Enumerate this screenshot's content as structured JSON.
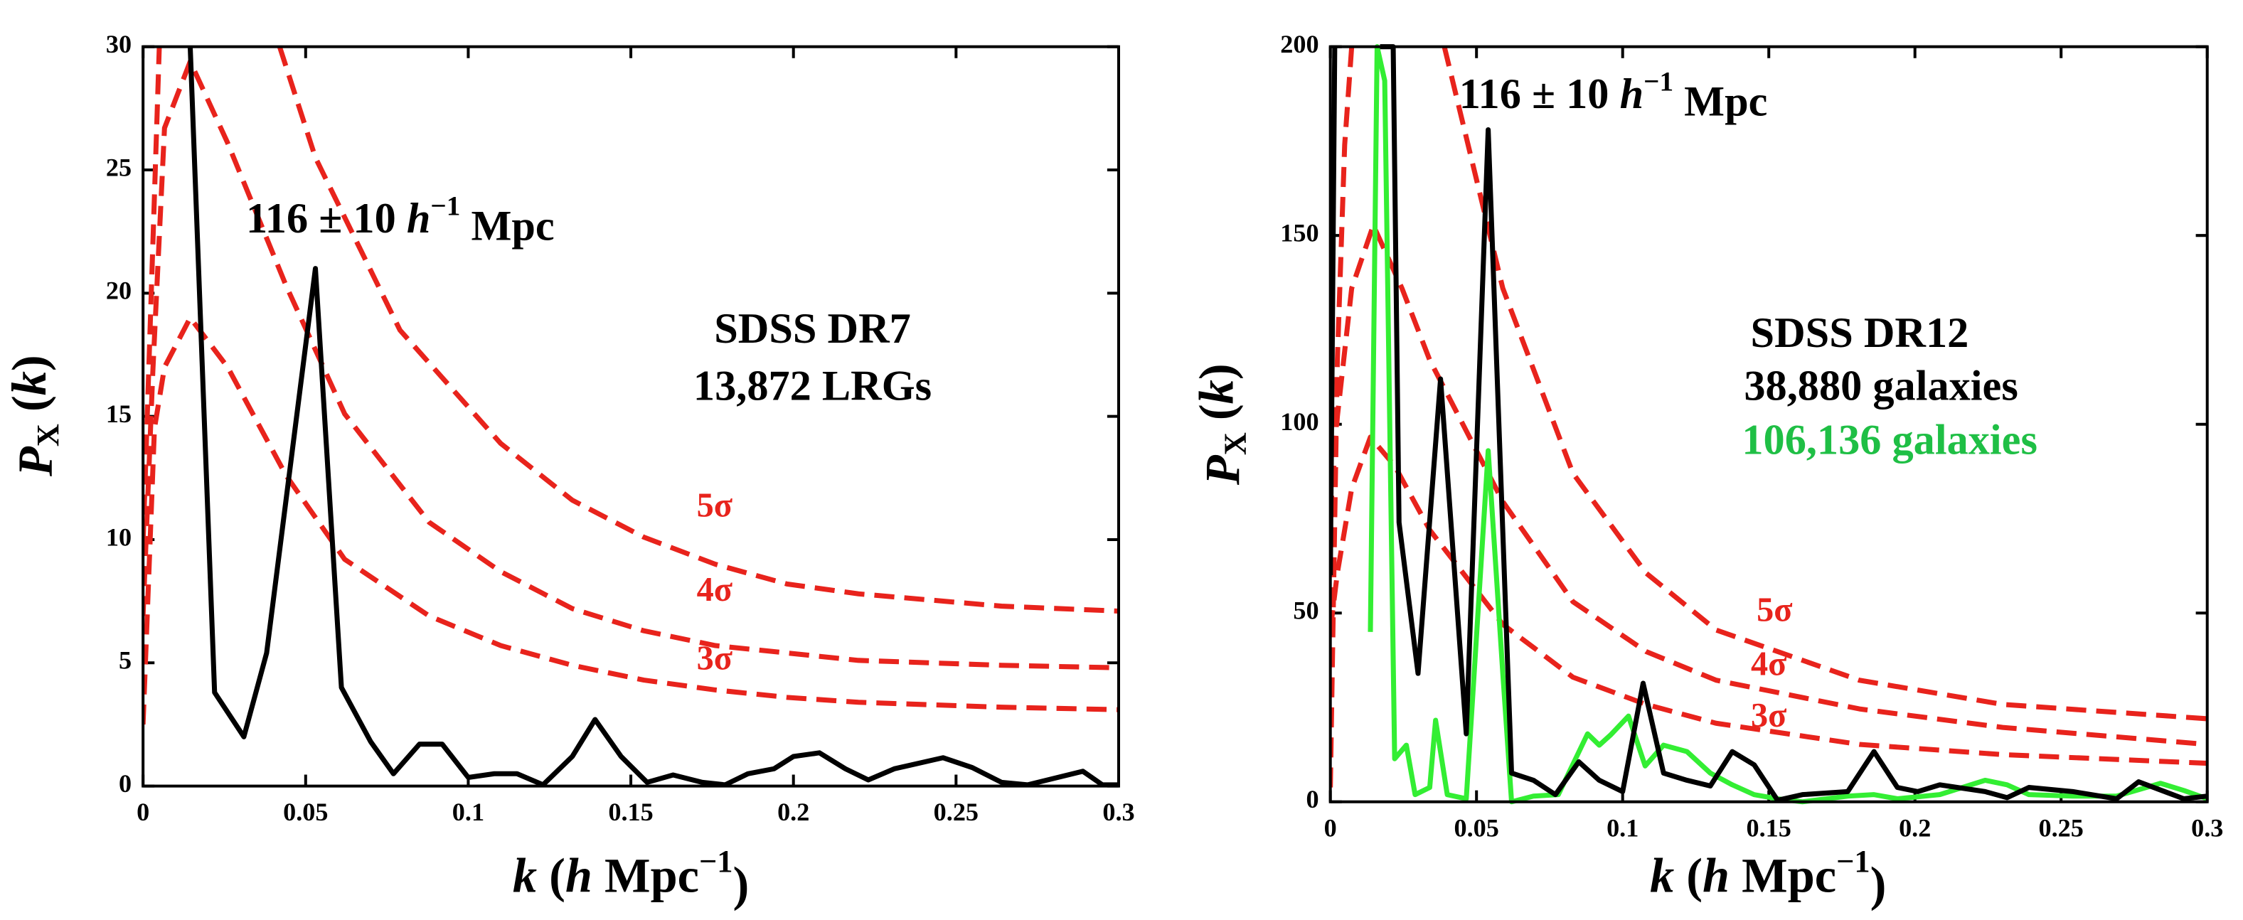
{
  "chart_data": [
    {
      "type": "line",
      "xlim": [
        0,
        0.3
      ],
      "ylim": [
        0,
        30
      ],
      "xticks": [
        0,
        0.05,
        0.1,
        0.15,
        0.2,
        0.25,
        0.3
      ],
      "yticks": [
        0,
        5,
        10,
        15,
        20,
        25,
        30
      ],
      "xlabel": [
        "k",
        " (",
        "h",
        " Mpc",
        "−1",
        ")"
      ],
      "ylabel": [
        "P",
        "X",
        " (",
        "k",
        ")"
      ],
      "annotations": [
        {
          "text": [
            "116 ± 10 ",
            "h",
            "−1",
            " Mpc"
          ],
          "color": "#000000"
        },
        {
          "text": "SDSS DR7",
          "color": "#000000"
        },
        {
          "text": "13,872 LRGs",
          "color": "#000000"
        }
      ],
      "series": [
        {
          "name": "5σ",
          "color": "#e8231c",
          "dashed": true,
          "x": [
            0,
            0.0026,
            0.005,
            0.02,
            0.042,
            0.053,
            0.079,
            0.11,
            0.132,
            0.154,
            0.176,
            0.198,
            0.22,
            0.264,
            0.3
          ],
          "values": [
            9.8,
            20.3,
            30,
            null,
            30,
            25.5,
            18.5,
            13.9,
            11.6,
            10.1,
            9.0,
            8.2,
            7.8,
            7.3,
            7.1
          ]
        },
        {
          "name": "4σ",
          "color": "#e8231c",
          "dashed": true,
          "x": [
            0,
            0.003,
            0.0066,
            0.0145,
            0.026,
            0.044,
            0.062,
            0.088,
            0.11,
            0.132,
            0.154,
            0.176,
            0.198,
            0.22,
            0.264,
            0.3
          ],
          "values": [
            6.9,
            16.8,
            26.7,
            29.4,
            26.1,
            20.3,
            15.1,
            10.7,
            8.7,
            7.2,
            6.3,
            5.7,
            5.4,
            5.1,
            4.9,
            4.8
          ]
        },
        {
          "name": "3σ",
          "color": "#e8231c",
          "dashed": true,
          "x": [
            0,
            0.0035,
            0.0066,
            0.0145,
            0.026,
            0.044,
            0.062,
            0.088,
            0.11,
            0.132,
            0.154,
            0.176,
            0.198,
            0.22,
            0.242,
            0.264,
            0.3
          ],
          "values": [
            2.5,
            14.5,
            17,
            19,
            17,
            12.6,
            9.2,
            6.9,
            5.7,
            4.9,
            4.3,
            3.9,
            3.6,
            3.4,
            3.3,
            3.2,
            3.1
          ]
        },
        {
          "color": "#000000",
          "dashed": false,
          "x": [
            0.0145,
            0.022,
            0.031,
            0.038,
            0.053,
            0.061,
            0.07,
            0.077,
            0.085,
            0.092,
            0.1,
            0.108,
            0.115,
            0.123,
            0.132,
            0.139,
            0.147,
            0.155,
            0.163,
            0.172,
            0.179,
            0.186,
            0.194,
            0.2,
            0.208,
            0.216,
            0.223,
            0.231,
            0.246,
            0.255,
            0.264,
            0.272,
            0.289,
            0.295,
            0.3
          ],
          "values": [
            30,
            3.8,
            2.0,
            5.4,
            21,
            4.0,
            1.8,
            0.5,
            1.7,
            1.7,
            0.35,
            0.5,
            0.5,
            0.05,
            1.2,
            2.7,
            1.2,
            0.15,
            0.45,
            0.15,
            0.05,
            0.5,
            0.7,
            1.2,
            1.35,
            0.7,
            0.25,
            0.7,
            1.15,
            0.75,
            0.15,
            0.05,
            0.6,
            0.05,
            0.05
          ]
        }
      ]
    },
    {
      "type": "line",
      "xlim": [
        0,
        0.3
      ],
      "ylim": [
        0,
        200
      ],
      "xticks": [
        0,
        0.05,
        0.1,
        0.15,
        0.2,
        0.25,
        0.3
      ],
      "yticks": [
        0,
        50,
        100,
        150,
        200
      ],
      "xlabel": [
        "k",
        " (",
        "h",
        " Mpc",
        "−1",
        ")"
      ],
      "ylabel": [
        "P",
        "X",
        " (",
        "k",
        ")"
      ],
      "annotations": [
        {
          "text": [
            "116 ± 10 ",
            "h",
            "−1",
            " Mpc"
          ],
          "color": "#000000"
        },
        {
          "text": "SDSS DR12",
          "color": "#000000"
        },
        {
          "text": "38,880 galaxies",
          "color": "#000000"
        },
        {
          "text": "106,136 galaxies",
          "color": "#1fbf45"
        }
      ],
      "series": [
        {
          "name": "5σ",
          "color": "#e8231c",
          "dashed": true,
          "x": [
            0,
            0.0024,
            0.0049,
            0.0073,
            0.02,
            0.039,
            0.059,
            0.083,
            0.108,
            0.132,
            0.181,
            0.23,
            0.3
          ],
          "values": [
            3.8,
            117,
            174,
            200,
            null,
            200,
            136,
            87,
            60.6,
            45.5,
            32.2,
            25.8,
            22
          ]
        },
        {
          "name": "4σ",
          "color": "#e8231c",
          "dashed": true,
          "x": [
            0,
            0.0024,
            0.0073,
            0.0147,
            0.0245,
            0.034,
            0.059,
            0.083,
            0.108,
            0.132,
            0.181,
            0.23,
            0.3
          ],
          "values": [
            75.8,
            102,
            136,
            152.7,
            136,
            117,
            79.5,
            53,
            39.8,
            32.2,
            24.6,
            19.7,
            15.2
          ]
        },
        {
          "name": "3σ",
          "color": "#e8231c",
          "dashed": true,
          "x": [
            0,
            0.0024,
            0.0073,
            0.0137,
            0.022,
            0.034,
            0.059,
            0.083,
            0.108,
            0.132,
            0.181,
            0.23,
            0.3
          ],
          "values": [
            45.5,
            60.6,
            83,
            96.6,
            89,
            72,
            47,
            33,
            25.8,
            20.8,
            15.2,
            12.5,
            10.2
          ]
        },
        {
          "color": "#33ee33",
          "dashed": false,
          "x": [
            0.0137,
            0.016,
            0.0186,
            0.022,
            0.026,
            0.029,
            0.034,
            0.036,
            0.04,
            0.0465,
            0.054,
            0.059,
            0.062,
            0.0695,
            0.078,
            0.088,
            0.092,
            0.096,
            0.102,
            0.1077,
            0.114,
            0.122,
            0.13,
            0.1375,
            0.145,
            0.153,
            0.1615,
            0.177,
            0.186,
            0.194,
            0.2085,
            0.224,
            0.2315,
            0.239,
            0.254,
            0.269,
            0.284,
            0.292,
            0.3
          ],
          "values": [
            45,
            200,
            191,
            11.4,
            15,
            1.9,
            3.8,
            21.6,
            1.9,
            0.8,
            93,
            34,
            0,
            1.5,
            1.9,
            18,
            15,
            17.8,
            22.7,
            9.5,
            15,
            13.3,
            7.6,
            4.5,
            1.9,
            0.8,
            0,
            1.5,
            1.9,
            0.8,
            1.9,
            5.7,
            4.5,
            1.9,
            1.5,
            1.5,
            4.9,
            3,
            0.8
          ]
        },
        {
          "color": "#000000",
          "dashed": false,
          "x": [
            0,
            0.0015,
            0.008,
            0.017,
            0.0215,
            0.0235,
            0.03,
            0.0377,
            0.0465,
            0.054,
            0.062,
            0.0695,
            0.077,
            0.085,
            0.092,
            0.1,
            0.107,
            0.114,
            0.122,
            0.13,
            0.1375,
            0.145,
            0.153,
            0.1615,
            0.177,
            0.186,
            0.194,
            0.201,
            0.2085,
            0.224,
            0.2315,
            0.239,
            0.254,
            0.269,
            0.2765,
            0.292,
            0.3
          ],
          "values": [
            60,
            200,
            null,
            200,
            200,
            74,
            34,
            112,
            18,
            178,
            7.6,
            5.7,
            1.9,
            10.6,
            5.7,
            2.7,
            31.4,
            7.6,
            5.7,
            4.2,
            13.3,
            9.8,
            0.4,
            1.9,
            2.7,
            13.3,
            3.8,
            2.7,
            4.5,
            2.7,
            1.1,
            3.8,
            2.7,
            0.8,
            5.3,
            0.8,
            1.5
          ]
        }
      ]
    }
  ]
}
